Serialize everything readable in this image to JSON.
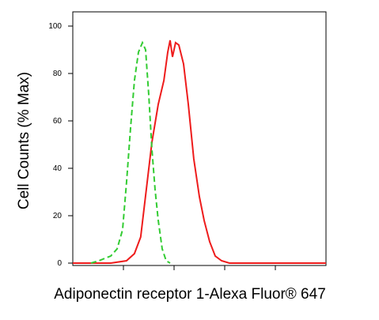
{
  "chart_data": {
    "type": "line",
    "x_label": "Adiponectin receptor 1-Alexa Fluor® 647",
    "y_label": "Cell Counts (% Max)",
    "xscale": "log",
    "xlim": [
      1,
      100000
    ],
    "xticks": [
      10,
      100,
      1000,
      10000
    ],
    "ylim": [
      -1,
      106
    ],
    "yticks": [
      0,
      20,
      40,
      60,
      80,
      100
    ],
    "series": [
      {
        "color": "#ee1c1c",
        "dash": "solid",
        "x": [
          1,
          5.62,
          11.5,
          16.5,
          21.9,
          28.3,
          36.5,
          48.7,
          62.9,
          75,
          83.5,
          93,
          107,
          124,
          154,
          191,
          245,
          316,
          392,
          505,
          649,
          866,
          1240,
          100000
        ],
        "values": [
          0,
          0,
          1,
          4,
          11,
          31,
          51,
          67,
          77,
          89,
          94,
          87,
          93,
          92,
          84,
          67,
          44,
          28,
          18,
          9,
          3,
          1,
          0,
          0
        ]
      },
      {
        "color": "#33cc33",
        "dash": "dashed",
        "x": [
          2.29,
          3.28,
          5.62,
          7.5,
          9.6,
          11.5,
          13.8,
          16.5,
          19.8,
          23.7,
          27.4,
          31.6,
          36.5,
          42.2,
          48.7,
          58.3,
          69.8,
          83.5
        ],
        "values": [
          0,
          1,
          3,
          6,
          14,
          34,
          57,
          77,
          89,
          93,
          90,
          71,
          48,
          31,
          18,
          6,
          1,
          0
        ]
      }
    ]
  }
}
